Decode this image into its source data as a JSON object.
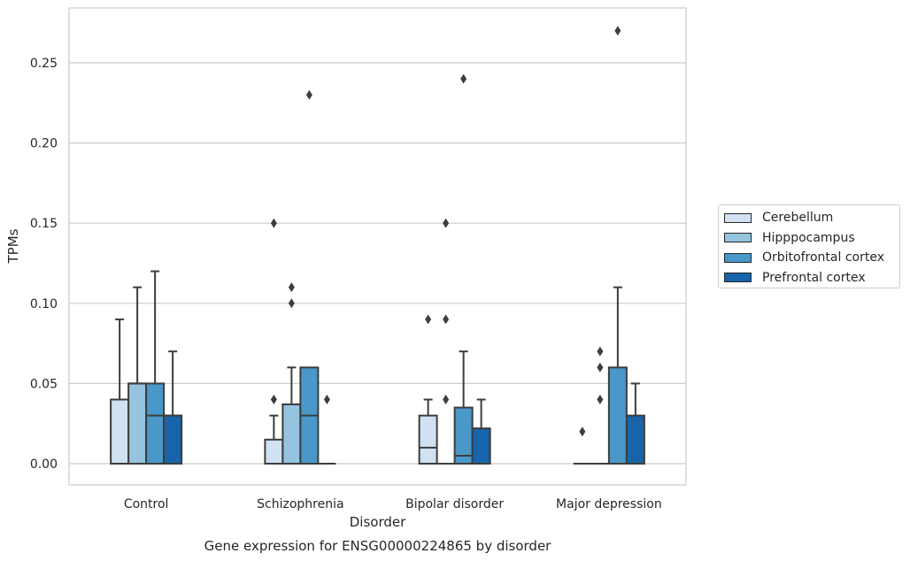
{
  "chart_data": {
    "type": "box",
    "title": "Gene expression for ENSG00000224865 by disorder",
    "xlabel": "Disorder",
    "ylabel": "TPMs",
    "ylim": [
      -0.013,
      0.284
    ],
    "yticks": [
      "0.00",
      "0.05",
      "0.10",
      "0.15",
      "0.20",
      "0.25"
    ],
    "ytick_values": [
      0,
      0.05,
      0.1,
      0.15,
      0.2,
      0.25
    ],
    "grid": true,
    "legend_position": "right",
    "categories": [
      "Control",
      "Schizophrenia",
      "Bipolar disorder",
      "Major depression"
    ],
    "series": [
      {
        "name": "Cerebellum",
        "color": "#d0e1f2",
        "boxes": [
          {
            "q1": 0,
            "median": 0,
            "q3": 0.04,
            "whisker_low": 0,
            "whisker_high": 0.09,
            "outliers": []
          },
          {
            "q1": 0,
            "median": 0,
            "q3": 0.015,
            "whisker_low": 0,
            "whisker_high": 0.03,
            "outliers": [
              0.04,
              0.15
            ]
          },
          {
            "q1": 0,
            "median": 0.01,
            "q3": 0.03,
            "whisker_low": 0,
            "whisker_high": 0.04,
            "outliers": [
              0.09
            ]
          },
          {
            "q1": 0,
            "median": 0,
            "q3": 0,
            "whisker_low": 0,
            "whisker_high": 0,
            "outliers": [
              0.02
            ]
          }
        ]
      },
      {
        "name": "Hipppocampus",
        "color": "#94c4df",
        "boxes": [
          {
            "q1": 0,
            "median": 0.05,
            "q3": 0.05,
            "whisker_low": 0,
            "whisker_high": 0.11,
            "outliers": []
          },
          {
            "q1": 0,
            "median": 0.037,
            "q3": 0.037,
            "whisker_low": 0,
            "whisker_high": 0.06,
            "outliers": [
              0.1,
              0.11
            ]
          },
          {
            "q1": 0,
            "median": 0,
            "q3": 0,
            "whisker_low": 0,
            "whisker_high": 0,
            "outliers": [
              0.04,
              0.09,
              0.15
            ]
          },
          {
            "q1": 0,
            "median": 0,
            "q3": 0,
            "whisker_low": 0,
            "whisker_high": 0,
            "outliers": [
              0.04,
              0.06,
              0.07
            ]
          }
        ]
      },
      {
        "name": "Orbitofrontal cortex",
        "color": "#4a98c9",
        "boxes": [
          {
            "q1": 0,
            "median": 0.03,
            "q3": 0.05,
            "whisker_low": 0,
            "whisker_high": 0.12,
            "outliers": []
          },
          {
            "q1": 0,
            "median": 0.03,
            "q3": 0.06,
            "whisker_low": 0,
            "whisker_high": 0.06,
            "outliers": [
              0.23
            ]
          },
          {
            "q1": 0,
            "median": 0.005,
            "q3": 0.035,
            "whisker_low": 0,
            "whisker_high": 0.07,
            "outliers": [
              0.24
            ]
          },
          {
            "q1": 0,
            "median": 0,
            "q3": 0.06,
            "whisker_low": 0,
            "whisker_high": 0.11,
            "outliers": [
              0.27
            ]
          }
        ]
      },
      {
        "name": "Prefrontal cortex",
        "color": "#1764ab",
        "boxes": [
          {
            "q1": 0,
            "median": 0.03,
            "q3": 0.03,
            "whisker_low": 0,
            "whisker_high": 0.07,
            "outliers": []
          },
          {
            "q1": 0,
            "median": 0,
            "q3": 0,
            "whisker_low": 0,
            "whisker_high": 0,
            "outliers": [
              0.04
            ]
          },
          {
            "q1": 0,
            "median": 0,
            "q3": 0.022,
            "whisker_low": 0,
            "whisker_high": 0.04,
            "outliers": []
          },
          {
            "q1": 0,
            "median": 0,
            "q3": 0.03,
            "whisker_low": 0,
            "whisker_high": 0.05,
            "outliers": []
          }
        ]
      }
    ]
  }
}
